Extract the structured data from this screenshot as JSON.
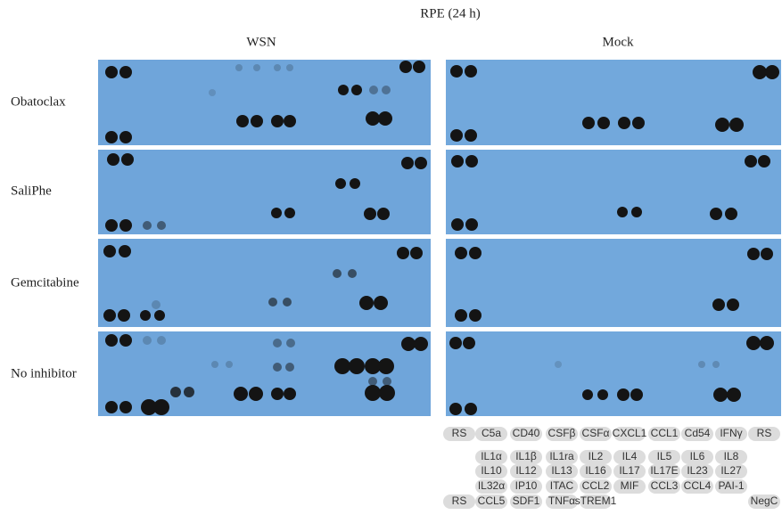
{
  "figure": {
    "title": "RPE (24 h)",
    "columns": [
      "WSN",
      "Mock"
    ],
    "rows": [
      "Obatoclax",
      "SaliPhe",
      "Gemcitabine",
      "No inhibitor"
    ]
  },
  "legend": {
    "rows": [
      [
        "RS",
        "C5a",
        "CD40",
        "CSFβ",
        "CSFα",
        "CXCL1",
        "CCL1",
        "Cd54",
        "IFNγ",
        "RS"
      ],
      [
        "IL1α",
        "IL1β",
        "IL1ra",
        "IL2",
        "IL4",
        "IL5",
        "IL6",
        "IL8"
      ],
      [
        "IL10",
        "IL12",
        "IL13",
        "IL16",
        "IL17",
        "IL17E",
        "IL23",
        "IL27"
      ],
      [
        "IL32α",
        "IP10",
        "ITAC",
        "CCL2",
        "MIF",
        "CCL3",
        "CCL4",
        "PAI-1"
      ],
      [
        "RS",
        "CCL5",
        "SDF1",
        "TNFα",
        "sTREM1",
        "NegC"
      ]
    ]
  }
}
